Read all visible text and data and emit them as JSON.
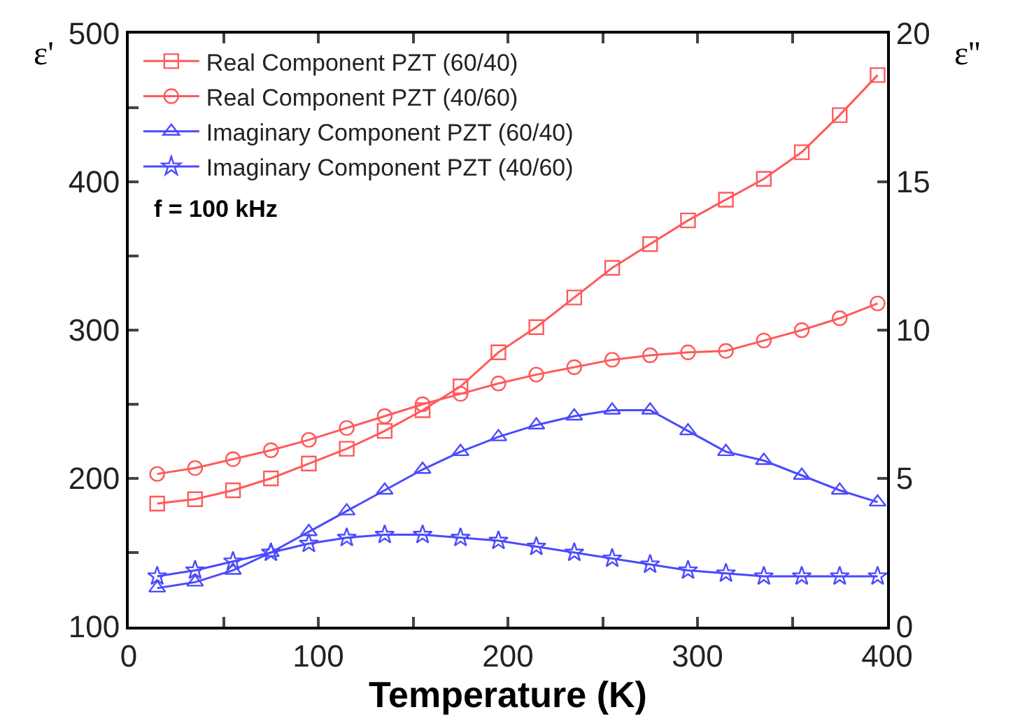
{
  "chart_data": {
    "type": "line",
    "xlabel": "Temperature (K)",
    "ylabel": "ε'",
    "y2label": "ε''",
    "annotations": [
      "f = 100 kHz"
    ],
    "x": [
      15,
      35,
      55,
      75,
      95,
      115,
      135,
      155,
      175,
      195,
      215,
      235,
      255,
      275,
      295,
      315,
      335,
      355,
      375,
      395
    ],
    "series": [
      {
        "name": "Real Component PZT (60/40)",
        "color": "#ff5a5a",
        "marker": "square",
        "values": [
          183,
          186,
          192,
          200,
          210,
          220,
          232,
          246,
          262,
          285,
          302,
          322,
          342,
          358,
          374,
          388,
          402,
          420,
          445,
          472
        ]
      },
      {
        "name": "Real Component PZT (40/60)",
        "color": "#ff5a5a",
        "marker": "circle",
        "values": [
          203,
          207,
          213,
          219,
          226,
          234,
          242,
          250,
          257,
          264,
          270,
          275,
          280,
          283,
          285,
          286,
          293,
          300,
          308,
          318
        ]
      },
      {
        "name": "Imaginary Component PZT (60/40)",
        "color": "#4a4aff",
        "marker": "triangle",
        "axis": "y2",
        "values": [
          1.3,
          1.5,
          1.9,
          2.5,
          3.2,
          3.9,
          4.6,
          5.3,
          5.9,
          6.4,
          6.8,
          7.1,
          7.3,
          7.3,
          6.6,
          5.9,
          5.6,
          5.1,
          4.6,
          4.2
        ]
      },
      {
        "name": "Imaginary Component PZT (40/60)",
        "color": "#4a4aff",
        "marker": "star",
        "axis": "y2",
        "values": [
          1.7,
          1.9,
          2.2,
          2.5,
          2.8,
          3.0,
          3.1,
          3.1,
          3.0,
          2.9,
          2.7,
          2.5,
          2.3,
          2.1,
          1.9,
          1.8,
          1.7,
          1.7,
          1.7,
          1.7
        ]
      }
    ],
    "xlim": [
      0,
      400
    ],
    "xticks": [
      0,
      {
        "value": 50,
        "label": null
      },
      100,
      {
        "value": 150,
        "label": null
      },
      200,
      {
        "value": 250,
        "label": null
      },
      300,
      {
        "value": 350,
        "label": null
      },
      400
    ],
    "ylim": [
      100,
      500
    ],
    "yticks": [
      100,
      {
        "value": 150,
        "label": null
      },
      200,
      {
        "value": 250,
        "label": null
      },
      300,
      {
        "value": 350,
        "label": null
      },
      400,
      {
        "value": 450,
        "label": null
      },
      500
    ],
    "y2lim": [
      0,
      20
    ],
    "y2ticks": [
      0,
      5,
      10,
      15,
      20
    ],
    "legend": "top left",
    "line_style": "solid"
  }
}
